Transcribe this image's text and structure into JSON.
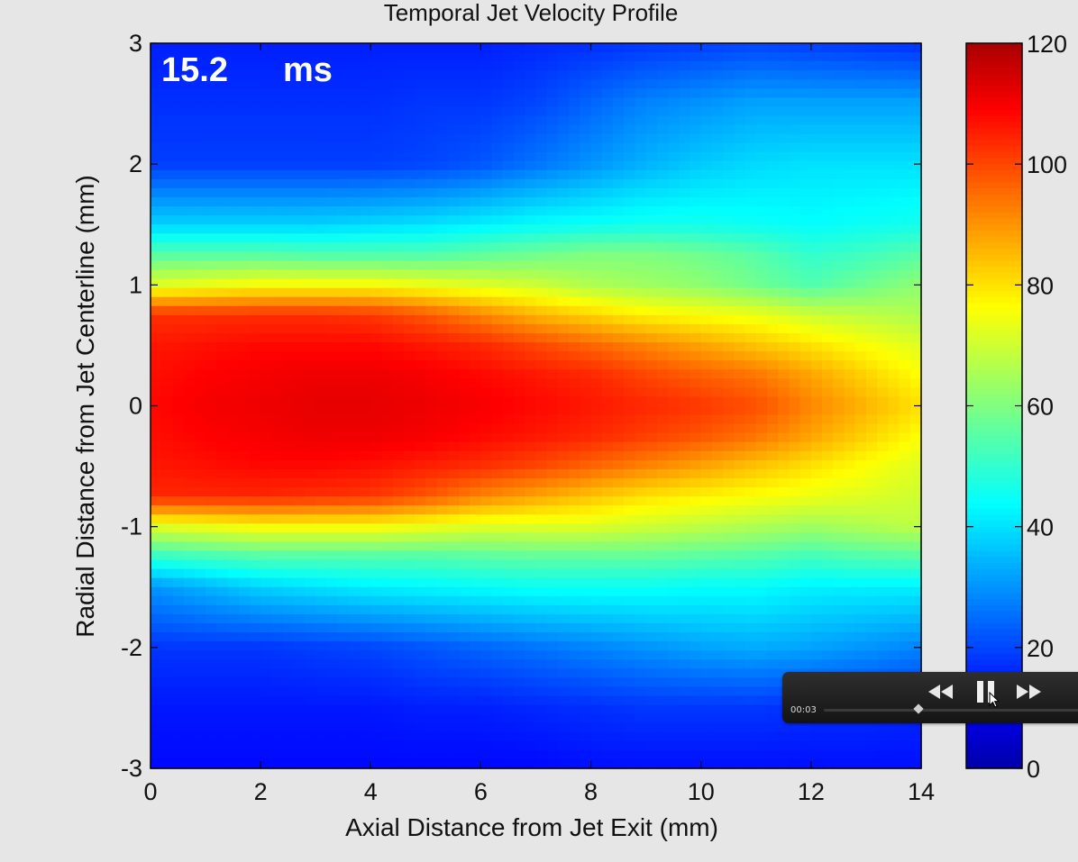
{
  "chart_data": {
    "type": "heatmap",
    "title": "Temporal Jet Velocity Profile",
    "xlabel": "Axial Distance from Jet Exit (mm)",
    "ylabel": "Radial Distance from Jet Centerline (mm)",
    "xlim": [
      0,
      14
    ],
    "ylim": [
      -3,
      3
    ],
    "x_ticks": [
      0,
      2,
      4,
      6,
      8,
      10,
      12,
      14
    ],
    "y_ticks": [
      -3,
      -2,
      -1,
      0,
      1,
      2,
      3
    ],
    "colorbar": {
      "range": [
        0,
        120
      ],
      "ticks": [
        0,
        20,
        40,
        60,
        80,
        100,
        120
      ],
      "colormap": "jet"
    },
    "annotation": {
      "value": "15.2",
      "unit": "ms"
    },
    "x": [
      0,
      1,
      2,
      3,
      4,
      5,
      6,
      7,
      8,
      9,
      10,
      11,
      12,
      13,
      14
    ],
    "y": [
      3,
      2.5,
      2,
      1.5,
      1.25,
      1,
      0.75,
      0.5,
      0.25,
      0,
      -0.25,
      -0.5,
      -0.75,
      -1,
      -1.25,
      -1.5,
      -2,
      -2.5,
      -3
    ],
    "z": [
      [
        15,
        15,
        15,
        15,
        15,
        15,
        15,
        16,
        17,
        18,
        19,
        20,
        19,
        18,
        17
      ],
      [
        17,
        17,
        17,
        17,
        17,
        18,
        18,
        20,
        24,
        28,
        30,
        32,
        32,
        32,
        32
      ],
      [
        19,
        19,
        19,
        19,
        19,
        20,
        22,
        26,
        30,
        34,
        37,
        39,
        40,
        40,
        40
      ],
      [
        38,
        38,
        38,
        38,
        39,
        40,
        42,
        44,
        45,
        46,
        46,
        45,
        44,
        45,
        46
      ],
      [
        55,
        55,
        55,
        54,
        54,
        54,
        56,
        58,
        60,
        60,
        58,
        55,
        50,
        52,
        55
      ],
      [
        72,
        74,
        76,
        76,
        76,
        74,
        72,
        70,
        66,
        64,
        62,
        58,
        54,
        58,
        62
      ],
      [
        103,
        103,
        103,
        103,
        102,
        98,
        92,
        86,
        82,
        78,
        76,
        74,
        70,
        68,
        66
      ],
      [
        106,
        107,
        108,
        108,
        108,
        106,
        104,
        100,
        96,
        92,
        88,
        84,
        80,
        76,
        72
      ],
      [
        107,
        109,
        110,
        111,
        111,
        110,
        108,
        106,
        104,
        100,
        97,
        94,
        88,
        82,
        76
      ],
      [
        108,
        110,
        111,
        112,
        112,
        111,
        110,
        108,
        106,
        104,
        102,
        99,
        92,
        86,
        80
      ],
      [
        107,
        109,
        110,
        111,
        111,
        110,
        108,
        106,
        104,
        101,
        98,
        94,
        88,
        82,
        76
      ],
      [
        106,
        107,
        108,
        108,
        107,
        105,
        103,
        100,
        96,
        92,
        88,
        84,
        80,
        76,
        72
      ],
      [
        104,
        104,
        104,
        103,
        102,
        98,
        92,
        88,
        84,
        80,
        78,
        76,
        74,
        72,
        70
      ],
      [
        72,
        74,
        76,
        76,
        76,
        74,
        72,
        72,
        72,
        70,
        68,
        66,
        64,
        66,
        68
      ],
      [
        50,
        52,
        54,
        54,
        54,
        54,
        55,
        56,
        56,
        56,
        55,
        54,
        52,
        54,
        55
      ],
      [
        30,
        34,
        38,
        40,
        42,
        43,
        44,
        45,
        45,
        45,
        44,
        44,
        42,
        42,
        42
      ],
      [
        18,
        18,
        18,
        19,
        20,
        22,
        24,
        26,
        28,
        30,
        32,
        33,
        32,
        30,
        28
      ],
      [
        14,
        14,
        14,
        14,
        14,
        15,
        15,
        16,
        17,
        18,
        18,
        18,
        17,
        17,
        16
      ],
      [
        12,
        12,
        12,
        12,
        12,
        12,
        12,
        12,
        13,
        13,
        13,
        13,
        13,
        13,
        13
      ]
    ]
  },
  "player": {
    "time": "00:03",
    "progress": 0.35,
    "icons": [
      "rewind-icon",
      "pause-icon",
      "fast-forward-icon"
    ]
  }
}
